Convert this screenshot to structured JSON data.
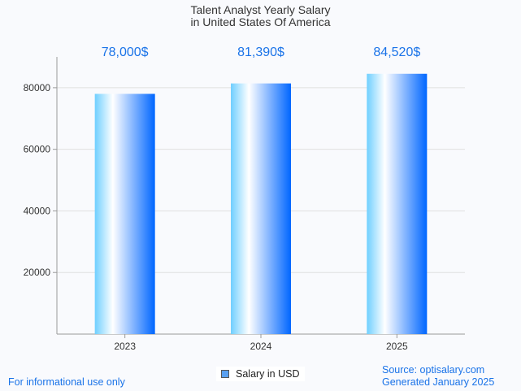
{
  "chart_data": {
    "type": "bar",
    "title": "Talent Analyst Yearly Salary",
    "subtitle": "in United States Of America",
    "categories": [
      "2023",
      "2024",
      "2025"
    ],
    "values": [
      78000,
      81390,
      84520
    ],
    "data_labels": [
      "78,000$",
      "81,390$",
      "84,520$"
    ],
    "yticks": [
      20000,
      40000,
      60000,
      80000
    ],
    "ytick_labels": [
      "20000",
      "40000",
      "60000",
      "80000"
    ],
    "ylim": [
      0,
      90000
    ],
    "xlabel": "",
    "ylabel": "",
    "grid": true,
    "legend": {
      "label": "Salary in USD",
      "placement": "bottom-center"
    },
    "colors": {
      "bar_start": "#6fcfff",
      "bar_mid": "#ffffff",
      "bar_end": "#0066ff",
      "label": "#1a73e8"
    }
  },
  "footer": {
    "disclaimer": "For informational use only",
    "source": "Source: optisalary.com",
    "generated": "Generated January 2025"
  }
}
